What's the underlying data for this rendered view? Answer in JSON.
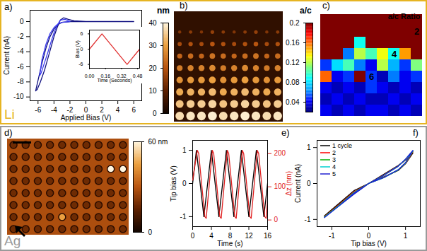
{
  "groups": [
    {
      "label": "Li",
      "color": "#e6b422"
    },
    {
      "label": "Ag",
      "color": "#9a9a9a"
    }
  ],
  "chart_data": [
    {
      "panel": "a)",
      "type": "line",
      "xlabel": "Applied Bias (V)",
      "ylabel": "Current (nA)",
      "xlim": [
        -7,
        7
      ],
      "xticks": [
        -6,
        -4,
        -2,
        0,
        2,
        4,
        6
      ],
      "ylim": [
        -10.5,
        1.5
      ],
      "yticks": [
        -10,
        -8,
        -6,
        -4,
        -2,
        0
      ],
      "series": [
        {
          "color": "#101080",
          "x": [
            6,
            4,
            2,
            0,
            -2,
            -3,
            -3.5,
            -4,
            -4.5,
            -5,
            -5.5,
            -6,
            -6.3,
            -6.1,
            -5.7,
            -5.2,
            -4.8,
            -4.4,
            -4,
            -3.6,
            -3.2,
            -2.8,
            -2.2,
            -1.5,
            0,
            6
          ],
          "values": [
            0,
            0,
            0,
            0,
            0,
            -0.1,
            -0.4,
            -1,
            -2,
            -3.5,
            -5.5,
            -7.8,
            -9.2,
            -9,
            -8,
            -6.5,
            -5,
            -3.5,
            -2,
            -0.8,
            0.2,
            0.5,
            0.3,
            0.1,
            0,
            0
          ]
        },
        {
          "color": "#3c3cf0",
          "x": [
            -2,
            -3,
            -3.5,
            -4,
            -4.5,
            -5,
            -5.5,
            -5.8,
            -5.6,
            -5.2,
            -4.8,
            -4.4,
            -4,
            -3.6,
            -3.2,
            -2.6,
            -2
          ],
          "values": [
            0,
            -0.1,
            -0.3,
            -0.8,
            -1.6,
            -3,
            -5,
            -7.2,
            -6.8,
            -5.5,
            -4.2,
            -2.8,
            -1.5,
            -0.5,
            0.2,
            0.3,
            0
          ]
        }
      ],
      "inset": {
        "type": "line",
        "xlabel": "Time (Seconds)",
        "ylabel": "Bias (V)",
        "xlim": [
          0,
          0.5
        ],
        "xticks": [
          {
            "value": 0,
            "label": "0.00"
          },
          0.16,
          0.32,
          0.48
        ],
        "ylim": [
          -7.5,
          7.5
        ],
        "yticks": [
          -6,
          0,
          6
        ],
        "color": "#e03030",
        "x": [
          0,
          0.125,
          0.375,
          0.5
        ],
        "values": [
          0,
          6,
          -6,
          0
        ]
      }
    },
    {
      "panel": "b)",
      "type": "image",
      "colorbar_label": "nm",
      "clim": [
        0,
        40
      ],
      "cticks": [
        0,
        10,
        20,
        30,
        40
      ],
      "background": 4,
      "spots": [
        [
          14,
          15,
          14,
          16,
          15,
          14,
          15,
          16,
          14,
          15
        ],
        [
          18,
          19,
          18,
          20,
          19,
          18,
          19,
          20,
          18,
          19
        ],
        [
          22,
          23,
          22,
          24,
          23,
          22,
          23,
          24,
          22,
          23
        ],
        [
          25,
          26,
          26,
          27,
          25,
          26,
          27,
          26,
          25,
          26
        ],
        [
          28,
          29,
          29,
          30,
          28,
          29,
          30,
          29,
          28,
          29
        ],
        [
          31,
          32,
          32,
          33,
          31,
          32,
          33,
          32,
          31,
          32
        ],
        [
          34,
          35,
          35,
          36,
          34,
          35,
          36,
          35,
          34,
          35
        ],
        [
          37,
          38,
          38,
          39,
          37,
          38,
          39,
          38,
          37,
          38
        ]
      ]
    },
    {
      "panel": "c)",
      "type": "heatmap",
      "title": "a/c Ratio",
      "colorbar_label": "a/c",
      "clim": [
        0.02,
        0.2
      ],
      "cticks": [
        0.04,
        0.08,
        0.12,
        0.16,
        0.2
      ],
      "cells": [
        [
          0.2,
          0.2,
          0.2,
          0.2,
          0.2,
          0.2,
          0.2,
          0.2,
          0.2
        ],
        [
          0.2,
          0.2,
          0.2,
          0.2,
          0.2,
          0.2,
          0.2,
          0.2,
          0.2
        ],
        [
          0.2,
          0.2,
          0.2,
          0.09,
          0.2,
          0.2,
          0.2,
          0.2,
          0.2
        ],
        [
          0.2,
          0.2,
          0.06,
          0.12,
          0.1,
          0.13,
          0.09,
          0.15,
          0.2
        ],
        [
          0.05,
          0.08,
          0.1,
          0.06,
          0.04,
          0.12,
          0.07,
          0.05,
          0.11
        ],
        [
          0.16,
          0.04,
          0.05,
          0.2,
          0.05,
          0.03,
          0.06,
          0.04,
          0.05
        ],
        [
          0.04,
          0.03,
          0.04,
          0.03,
          0.05,
          0.04,
          0.03,
          0.04,
          0.03
        ],
        [
          0.03,
          0.04,
          0.03,
          0.04,
          0.03,
          0.03,
          0.04,
          0.03,
          0.04
        ],
        [
          0.04,
          0.03,
          0.04,
          0.03,
          0.04,
          0.04,
          0.03,
          0.04,
          0.03
        ]
      ],
      "annotations": [
        {
          "text": "2",
          "row": 1,
          "col": 8
        },
        {
          "text": "4",
          "row": 3,
          "col": 6
        },
        {
          "text": "6",
          "row": 5,
          "col": 4
        }
      ]
    },
    {
      "panel": "d)",
      "type": "image",
      "clim": [
        0,
        60
      ],
      "cticks": [
        {
          "value": 60,
          "label": "60 nm"
        },
        0
      ],
      "background": 28,
      "spots": [
        [
          18,
          18,
          18,
          18,
          18,
          18,
          18,
          18,
          18,
          18
        ],
        [
          18,
          18,
          18,
          18,
          18,
          18,
          18,
          18,
          18,
          18
        ],
        [
          18,
          18,
          18,
          18,
          18,
          18,
          18,
          18,
          60,
          60
        ],
        [
          18,
          18,
          18,
          18,
          18,
          18,
          18,
          18,
          18,
          18
        ],
        [
          18,
          18,
          18,
          18,
          18,
          18,
          18,
          18,
          18,
          18
        ],
        [
          18,
          18,
          18,
          18,
          18,
          18,
          18,
          18,
          18,
          18
        ],
        [
          18,
          18,
          18,
          18,
          45,
          18,
          18,
          18,
          18,
          18
        ],
        [
          18,
          18,
          18,
          18,
          18,
          18,
          18,
          18,
          18,
          18
        ]
      ]
    },
    {
      "panel": "e)",
      "type": "line",
      "xlabel": "Time (s)",
      "ylabel": "Tip bias (V)",
      "y2label": "Δz (nm)",
      "xlim": [
        0,
        16
      ],
      "xticks": [
        0,
        4,
        8,
        12,
        16
      ],
      "ylim": [
        -1.3,
        1.3
      ],
      "yticks": [
        -1,
        0,
        1
      ],
      "y2lim": [
        -20,
        240
      ],
      "y2ticks": [
        0,
        100,
        200
      ],
      "series": [
        {
          "color": "#000000",
          "x": [
            0,
            0.8,
            2.4,
            4.0,
            5.6,
            7.2,
            8.8,
            10.4,
            12.0,
            13.6,
            15.2,
            16
          ],
          "values": [
            0,
            1,
            -1,
            1,
            -1,
            1,
            -1,
            1,
            -1,
            1,
            -1,
            0
          ]
        },
        {
          "color": "#e02020",
          "axis": "y2",
          "x": [
            0,
            1.0,
            1.3,
            2.6,
            2.9,
            4.2,
            4.5,
            5.8,
            6.1,
            7.4,
            7.7,
            9.0,
            9.3,
            10.6,
            10.9,
            12.2,
            12.5,
            13.8,
            14.1,
            15.4,
            15.7,
            16
          ],
          "values": [
            120,
            210,
            200,
            10,
            5,
            210,
            200,
            10,
            5,
            210,
            200,
            10,
            5,
            210,
            200,
            10,
            5,
            210,
            200,
            10,
            5,
            60
          ]
        }
      ]
    },
    {
      "panel": "f)",
      "type": "line",
      "xlabel": "Tip bias (V)",
      "ylabel": "Current (nA)",
      "xlim": [
        -1.4,
        1.4
      ],
      "xticks": [
        -1,
        0,
        1
      ],
      "ylim": [
        -1.2,
        1.2
      ],
      "yticks": [
        -1,
        0,
        1
      ],
      "legend": "top-left",
      "x": [
        -1.2,
        -0.8,
        -0.4,
        0,
        0.4,
        0.8,
        1.0,
        1.2,
        1.0,
        0.8,
        0.4,
        0,
        -0.4,
        -0.8,
        -1.2
      ],
      "series": [
        {
          "name": "1 cycle",
          "color": "#000000",
          "values": [
            -0.9,
            -0.55,
            -0.2,
            0,
            0.25,
            0.5,
            0.65,
            0.85,
            0.55,
            0.36,
            0.18,
            0,
            -0.25,
            -0.58,
            -0.9
          ]
        },
        {
          "name": "2",
          "color": "#ff0000",
          "values": [
            -0.92,
            -0.58,
            -0.23,
            0,
            0.23,
            0.49,
            0.66,
            0.88,
            0.56,
            0.37,
            0.17,
            0,
            -0.27,
            -0.6,
            -0.92
          ]
        },
        {
          "name": "3",
          "color": "#00b000",
          "values": [
            -0.93,
            -0.6,
            -0.25,
            0,
            0.22,
            0.48,
            0.67,
            0.9,
            0.57,
            0.37,
            0.16,
            0,
            -0.28,
            -0.61,
            -0.93
          ]
        },
        {
          "name": "4",
          "color": "#00d0d0",
          "values": [
            -0.94,
            -0.61,
            -0.26,
            0,
            0.22,
            0.48,
            0.67,
            0.91,
            0.57,
            0.38,
            0.16,
            0,
            -0.29,
            -0.62,
            -0.94
          ]
        },
        {
          "name": "5",
          "color": "#2020d0",
          "values": [
            -0.95,
            -0.62,
            -0.27,
            0,
            0.22,
            0.48,
            0.68,
            0.92,
            0.58,
            0.38,
            0.16,
            0,
            -0.3,
            -0.62,
            -0.95
          ]
        }
      ]
    }
  ]
}
